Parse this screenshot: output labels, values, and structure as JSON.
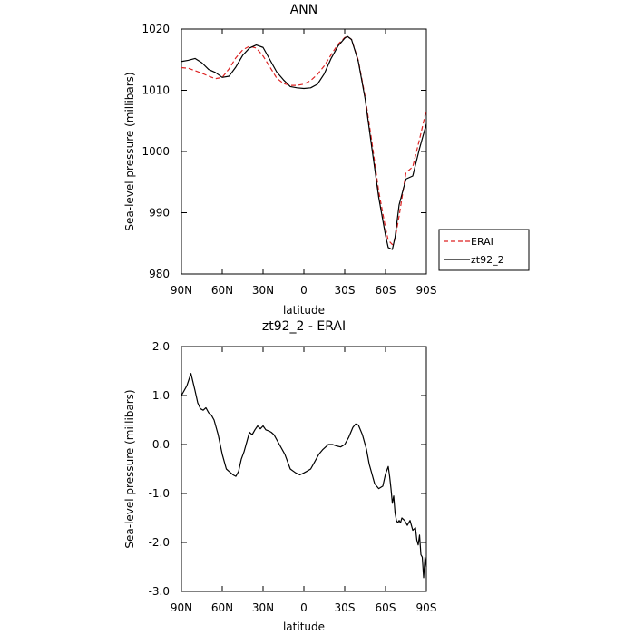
{
  "chart_data": [
    {
      "type": "line",
      "title": "ANN",
      "xlabel": "latitude",
      "ylabel": "Sea-level pressure (millibars)",
      "xlim": [
        90,
        -90
      ],
      "ylim": [
        980,
        1020
      ],
      "x_ticks": [
        90,
        60,
        30,
        0,
        -30,
        -60,
        -90
      ],
      "x_tick_labels": [
        "90N",
        "60N",
        "30N",
        "0",
        "30S",
        "60S",
        "90S"
      ],
      "y_ticks": [
        980,
        990,
        1000,
        1010,
        1020
      ],
      "y_tick_labels": [
        "980",
        "990",
        "1000",
        "1010",
        "1020"
      ],
      "legend_position": "right",
      "series": [
        {
          "name": "ERAI",
          "color": "#dd2222",
          "dash": "dashed",
          "x": [
            90,
            85,
            80,
            75,
            70,
            65,
            60,
            55,
            50,
            45,
            40,
            35,
            30,
            25,
            20,
            15,
            10,
            5,
            0,
            -5,
            -10,
            -15,
            -20,
            -25,
            -30,
            -32,
            -35,
            -40,
            -45,
            -50,
            -55,
            -60,
            -62,
            -65,
            -67,
            -70,
            -75,
            -80,
            -85,
            -90
          ],
          "y": [
            1013.7,
            1013.6,
            1013.2,
            1012.8,
            1012.3,
            1011.9,
            1012.1,
            1013.5,
            1015.3,
            1016.6,
            1017.2,
            1016.9,
            1015.6,
            1013.8,
            1012.0,
            1011.1,
            1010.8,
            1010.8,
            1011.0,
            1011.6,
            1012.6,
            1014.0,
            1015.8,
            1017.5,
            1018.6,
            1018.8,
            1018.3,
            1014.9,
            1009.0,
            1001.5,
            993.5,
            987.5,
            985.5,
            984.8,
            985.7,
            989.5,
            996.5,
            997.5,
            1002.0,
            1006.8
          ]
        },
        {
          "name": "zt92_2",
          "color": "#000000",
          "dash": "solid",
          "x": [
            90,
            85,
            80,
            75,
            70,
            65,
            60,
            55,
            50,
            45,
            40,
            35,
            30,
            25,
            20,
            15,
            10,
            5,
            0,
            -5,
            -10,
            -15,
            -20,
            -25,
            -30,
            -32,
            -35,
            -40,
            -45,
            -50,
            -55,
            -60,
            -62,
            -65,
            -67,
            -70,
            -75,
            -80,
            -85,
            -90
          ],
          "y": [
            1014.7,
            1014.9,
            1015.2,
            1014.5,
            1013.4,
            1012.9,
            1012.1,
            1012.3,
            1013.8,
            1015.7,
            1016.9,
            1017.4,
            1017.0,
            1015.0,
            1013.0,
            1011.7,
            1010.6,
            1010.4,
            1010.3,
            1010.4,
            1011.0,
            1012.7,
            1015.2,
            1017.2,
            1018.5,
            1018.8,
            1018.3,
            1014.7,
            1008.6,
            1000.5,
            992.5,
            986.3,
            984.3,
            984.0,
            986.0,
            991.3,
            995.5,
            996.0,
            1000.5,
            1004.5
          ]
        }
      ]
    },
    {
      "type": "line",
      "title": "zt92_2 - ERAI",
      "xlabel": "latitude",
      "ylabel": "Sea-level pressure (millibars)",
      "xlim": [
        90,
        -90
      ],
      "ylim": [
        -3.0,
        2.0
      ],
      "x_ticks": [
        90,
        60,
        30,
        0,
        -30,
        -60,
        -90
      ],
      "x_tick_labels": [
        "90N",
        "60N",
        "30N",
        "0",
        "30S",
        "60S",
        "90S"
      ],
      "y_ticks": [
        -3,
        -2,
        -1,
        0,
        1,
        2
      ],
      "y_tick_labels": [
        "-3.0",
        "-2.0",
        "-1.0",
        "0.0",
        "1.0",
        "2.0"
      ],
      "series": [
        {
          "color": "#000000",
          "dash": "solid",
          "x": [
            90,
            86,
            83,
            80,
            78,
            76,
            74,
            72,
            70,
            68,
            66,
            63,
            60,
            57,
            55,
            52,
            50,
            48,
            46,
            44,
            42,
            40,
            38,
            36,
            34,
            32,
            30,
            28,
            26,
            24,
            22,
            18,
            14,
            10,
            6,
            3,
            0,
            -2,
            -5,
            -8,
            -11,
            -14,
            -18,
            -21,
            -24,
            -27,
            -30,
            -33,
            -36,
            -38,
            -40,
            -43,
            -46,
            -48,
            -50,
            -52,
            -55,
            -58,
            -60,
            -62,
            -63,
            -64,
            -65,
            -66,
            -67,
            -68,
            -69,
            -70,
            -71,
            -72,
            -74,
            -76,
            -78,
            -80,
            -82,
            -83,
            -84,
            -85,
            -86,
            -87,
            -88,
            -89,
            -90
          ],
          "y": [
            1.0,
            1.2,
            1.45,
            1.1,
            0.85,
            0.73,
            0.7,
            0.75,
            0.65,
            0.6,
            0.5,
            0.2,
            -0.2,
            -0.5,
            -0.55,
            -0.62,
            -0.65,
            -0.55,
            -0.3,
            -0.15,
            0.05,
            0.25,
            0.2,
            0.3,
            0.38,
            0.32,
            0.38,
            0.3,
            0.28,
            0.25,
            0.2,
            0.0,
            -0.2,
            -0.5,
            -0.58,
            -0.62,
            -0.58,
            -0.55,
            -0.5,
            -0.35,
            -0.2,
            -0.1,
            0.0,
            0.0,
            -0.03,
            -0.05,
            0.0,
            0.15,
            0.35,
            0.42,
            0.4,
            0.2,
            -0.1,
            -0.4,
            -0.6,
            -0.8,
            -0.9,
            -0.85,
            -0.6,
            -0.45,
            -0.65,
            -0.9,
            -1.2,
            -1.05,
            -1.4,
            -1.55,
            -1.6,
            -1.55,
            -1.6,
            -1.5,
            -1.55,
            -1.65,
            -1.55,
            -1.75,
            -1.7,
            -1.95,
            -2.05,
            -1.85,
            -2.25,
            -2.3,
            -2.72,
            -2.3,
            -2.5
          ]
        }
      ]
    }
  ]
}
